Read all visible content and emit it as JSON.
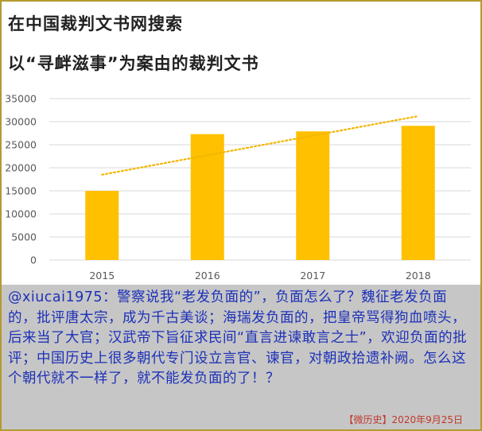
{
  "header": {
    "title_line1": "在中国裁判文书网搜索",
    "title_line2": "以“寻衅滋事”为案由的裁判文书"
  },
  "chart_data": {
    "type": "bar",
    "categories": [
      "2015",
      "2016",
      "2017",
      "2018"
    ],
    "values": [
      15000,
      27300,
      27900,
      29100
    ],
    "ylim": [
      0,
      35000
    ],
    "yticks": [
      0,
      5000,
      10000,
      15000,
      20000,
      25000,
      30000,
      35000
    ],
    "grid": true,
    "trendline": {
      "style": "dotted",
      "start": 18500,
      "end": 31200
    },
    "colors": {
      "bar": "#ffc000",
      "trend": "#f2b600",
      "grid": "#d9d9d9"
    }
  },
  "comment": {
    "text": "@xiucai1975：警察说我“老发负面的”，负面怎么了？魏征老发负面的，批评唐太宗，成为千古美谈；海瑞发负面的，把皇帝骂得狗血喷头，后来当了大官；汉武帝下旨征求民间“直言进谏敢言之士”，欢迎负面的批评；中国历史上很多朝代专门设立言官、谏官，对朝政拾遗补阙。怎么这个朝代就不一样了，就不能发负面的了！？"
  },
  "footer": {
    "text": "【微历史】2020年9月25日"
  },
  "colors": {
    "frame_border": "#b39a2e",
    "comment_background": "#c6c6c6",
    "comment_text": "#1d30b8",
    "footer_text": "#c0392b"
  }
}
